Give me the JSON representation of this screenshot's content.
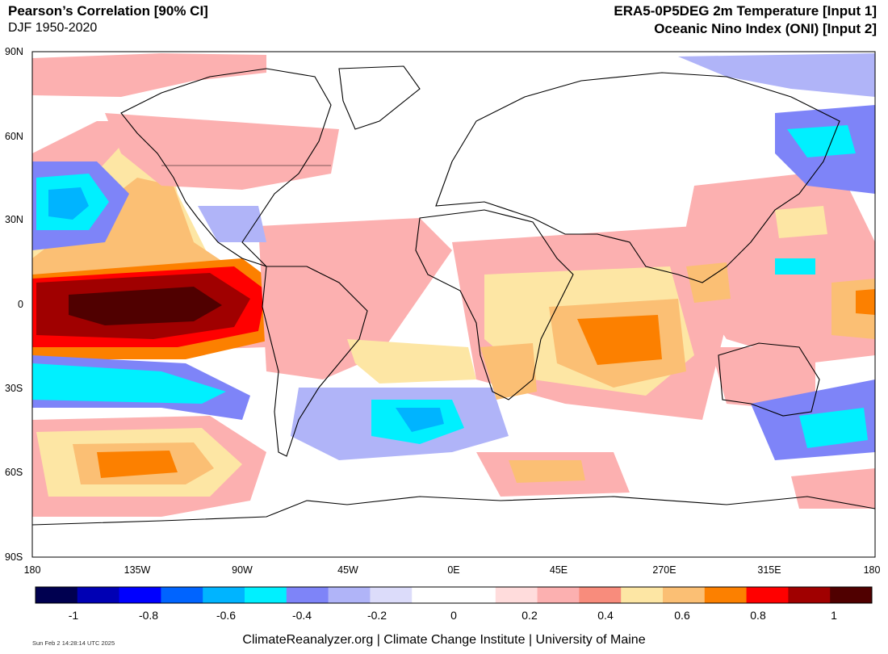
{
  "header": {
    "title_left": "Pearson’s Correlation [90% CI]",
    "subtitle_left": "DJF 1950-2020",
    "title_right": "ERA5-0P5DEG 2m Temperature [Input 1]",
    "title_right2": "Oceanic Nino Index (ONI) [Input 2]"
  },
  "map": {
    "lat_labels": [
      "90N",
      "60N",
      "30N",
      "0",
      "30S",
      "60S",
      "90S"
    ],
    "lon_labels": [
      "180",
      "135W",
      "90W",
      "45W",
      "0E",
      "45E",
      "270E",
      "315E",
      "180"
    ],
    "land_color": "#ffffff",
    "coastline_color": "#000000"
  },
  "colorbar": {
    "colors": [
      "#000050",
      "#0000b4",
      "#0000ff",
      "#0064ff",
      "#00b4ff",
      "#00f0ff",
      "#7e84f8",
      "#b0b4f8",
      "#dcdcfa",
      "#ffffff",
      "#ffffff",
      "#ffdcdc",
      "#fcb0b0",
      "#f88c7c",
      "#fde6a4",
      "#fbbf74",
      "#fc8000",
      "#ff0000",
      "#a00000",
      "#500000"
    ],
    "labels": [
      "-1",
      "-0.8",
      "-0.6",
      "-0.4",
      "-0.2",
      "0",
      "0.2",
      "0.4",
      "0.6",
      "0.8",
      "1"
    ]
  },
  "footer": {
    "credit": "ClimateReanalyzer.org | Climate Change Institute | University of Maine",
    "timestamp": "Sun Feb  2 14:28:14 UTC 2025"
  }
}
